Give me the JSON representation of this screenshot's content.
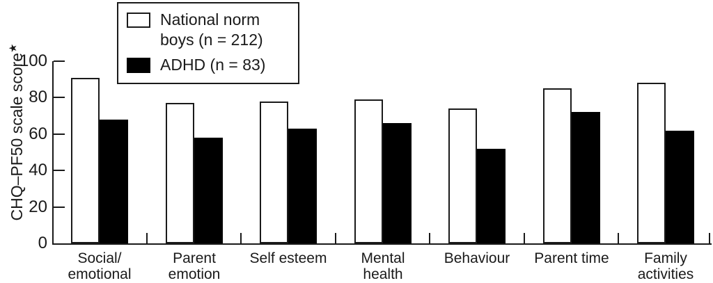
{
  "chart_data": {
    "type": "bar",
    "title": "",
    "ylabel": "CHQ–PF50 scale score",
    "ylabel_superscript": "★",
    "ylim": [
      0,
      100
    ],
    "yticks": [
      0,
      20,
      40,
      60,
      80,
      100
    ],
    "grid": false,
    "legend_position": "top-left",
    "categories": [
      "Social/emotional",
      "Parent emotion",
      "Self esteem",
      "Mental health",
      "Behaviour",
      "Parent time",
      "Family activities"
    ],
    "category_label_lines": [
      [
        "Social/",
        "emotional"
      ],
      [
        "Parent",
        "emotion"
      ],
      [
        "Self esteem"
      ],
      [
        "Mental",
        "health"
      ],
      [
        "Behaviour"
      ],
      [
        "Parent time"
      ],
      [
        "Family",
        "activities"
      ]
    ],
    "series": [
      {
        "name": "National norm boys (n = 212)",
        "fill": "#ffffff",
        "values": [
          91,
          77,
          78,
          79,
          74,
          85,
          88
        ]
      },
      {
        "name": "ADHD (n = 83)",
        "fill": "#000000",
        "values": [
          68,
          58,
          63,
          66,
          52,
          72,
          62
        ]
      }
    ],
    "colors": {
      "stroke": "#1a1a1a",
      "norm_fill": "#ffffff",
      "adhd_fill": "#000000",
      "background": "#ffffff"
    }
  }
}
